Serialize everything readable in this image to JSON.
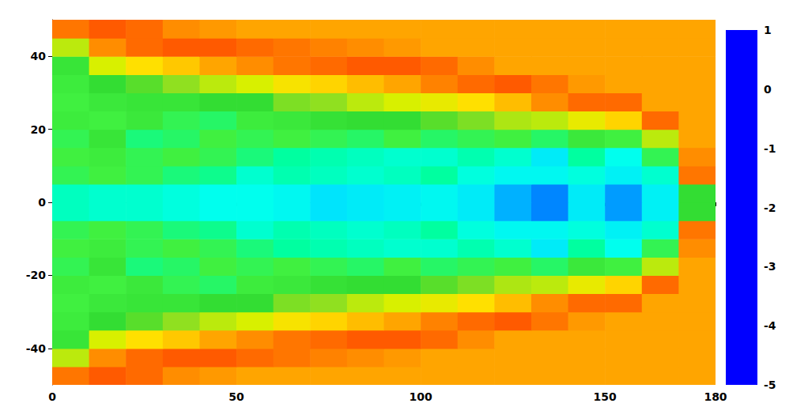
{
  "chart_data": {
    "type": "heatmap",
    "x_edges": [
      0,
      10,
      20,
      30,
      40,
      50,
      60,
      70,
      80,
      90,
      100,
      110,
      120,
      130,
      140,
      150,
      160,
      170,
      180
    ],
    "y_edges": [
      -50,
      -45,
      -40,
      -35,
      -30,
      -25,
      -20,
      -15,
      -10,
      -5,
      0,
      5,
      10,
      15,
      20,
      25,
      30,
      35,
      40,
      45,
      50
    ],
    "values": [
      [
        0.4,
        0.6,
        0.5,
        0.2,
        0.1,
        0,
        0,
        0,
        0,
        0,
        0,
        0,
        0,
        0,
        0,
        0,
        0,
        0
      ],
      [
        -1.2,
        0.2,
        0.5,
        0.6,
        0.6,
        0.5,
        0.4,
        0.3,
        0.2,
        0.1,
        0,
        0,
        0,
        0,
        0,
        0,
        0,
        0
      ],
      [
        -2.2,
        -1.0,
        -0.5,
        -0.3,
        0.0,
        0.2,
        0.4,
        0.5,
        0.6,
        0.6,
        0.5,
        0.2,
        0,
        0,
        0,
        0,
        0,
        0
      ],
      [
        -2.4,
        -2.0,
        -1.8,
        -1.5,
        -1.2,
        -1.0,
        -0.6,
        -0.4,
        -0.2,
        0.0,
        0.3,
        0.5,
        0.6,
        0.4,
        0.1,
        0,
        0,
        0
      ],
      [
        -2.5,
        -2.3,
        -2.2,
        -2.2,
        -2.0,
        -2.0,
        -1.6,
        -1.5,
        -1.2,
        -1.0,
        -0.8,
        -0.5,
        -0.2,
        0.2,
        0.5,
        0.5,
        0,
        0
      ],
      [
        -2.4,
        -2.5,
        -2.3,
        -2.6,
        -2.7,
        -2.4,
        -2.3,
        -2.1,
        -2.0,
        -2.0,
        -1.8,
        -1.6,
        -1.3,
        -1.2,
        -0.8,
        -0.4,
        0.5,
        0
      ],
      [
        -2.6,
        -2.2,
        -2.8,
        -2.7,
        -2.5,
        -2.6,
        -2.5,
        -2.6,
        -2.7,
        -2.5,
        -2.7,
        -2.6,
        -2.5,
        -2.7,
        -2.3,
        -2.5,
        -1.2,
        0
      ],
      [
        -2.5,
        -2.4,
        -2.6,
        -2.5,
        -2.6,
        -2.8,
        -3.0,
        -3.1,
        -3.2,
        -3.3,
        -3.3,
        -3.1,
        -3.3,
        -3.8,
        -3.0,
        -3.5,
        -2.6,
        0.2
      ],
      [
        -2.6,
        -2.5,
        -2.6,
        -2.8,
        -2.9,
        -3.3,
        -3.1,
        -3.2,
        -3.3,
        -3.2,
        -3.0,
        -3.4,
        -3.6,
        -3.6,
        -3.4,
        -3.7,
        -3.3,
        0.4
      ],
      [
        -3.2,
        -3.3,
        -3.3,
        -3.4,
        -3.5,
        -3.5,
        -3.6,
        -3.9,
        -3.8,
        -3.7,
        -3.6,
        -3.8,
        -4.2,
        -4.4,
        -3.8,
        -4.3,
        -3.7,
        -2.0
      ],
      [
        -3.2,
        -3.3,
        -3.3,
        -3.4,
        -3.5,
        -3.5,
        -3.6,
        -3.9,
        -3.8,
        -3.7,
        -3.6,
        -3.8,
        -4.2,
        -4.4,
        -3.8,
        -4.3,
        -3.7,
        -2.0
      ],
      [
        -2.6,
        -2.5,
        -2.6,
        -2.8,
        -2.9,
        -3.3,
        -3.1,
        -3.2,
        -3.3,
        -3.2,
        -3.0,
        -3.4,
        -3.6,
        -3.6,
        -3.4,
        -3.7,
        -3.3,
        0.4
      ],
      [
        -2.5,
        -2.4,
        -2.6,
        -2.5,
        -2.6,
        -2.8,
        -3.0,
        -3.1,
        -3.2,
        -3.3,
        -3.3,
        -3.1,
        -3.3,
        -3.8,
        -3.0,
        -3.5,
        -2.6,
        0.2
      ],
      [
        -2.6,
        -2.2,
        -2.8,
        -2.7,
        -2.5,
        -2.6,
        -2.5,
        -2.6,
        -2.7,
        -2.5,
        -2.7,
        -2.6,
        -2.5,
        -2.7,
        -2.3,
        -2.5,
        -1.2,
        0
      ],
      [
        -2.4,
        -2.5,
        -2.3,
        -2.6,
        -2.7,
        -2.4,
        -2.3,
        -2.1,
        -2.0,
        -2.0,
        -1.8,
        -1.6,
        -1.3,
        -1.2,
        -0.8,
        -0.4,
        0.5,
        0
      ],
      [
        -2.5,
        -2.3,
        -2.2,
        -2.2,
        -2.0,
        -2.0,
        -1.6,
        -1.5,
        -1.2,
        -1.0,
        -0.8,
        -0.5,
        -0.2,
        0.2,
        0.5,
        0.5,
        0,
        0
      ],
      [
        -2.4,
        -2.0,
        -1.8,
        -1.5,
        -1.2,
        -1.0,
        -0.6,
        -0.4,
        -0.2,
        0.0,
        0.3,
        0.5,
        0.6,
        0.4,
        0.1,
        0,
        0,
        0
      ],
      [
        -2.2,
        -1.0,
        -0.5,
        -0.3,
        0.0,
        0.2,
        0.4,
        0.5,
        0.6,
        0.6,
        0.5,
        0.2,
        0,
        0,
        0,
        0,
        0,
        0
      ],
      [
        -1.2,
        0.2,
        0.5,
        0.6,
        0.6,
        0.5,
        0.4,
        0.3,
        0.2,
        0.1,
        0,
        0,
        0,
        0,
        0,
        0,
        0,
        0
      ],
      [
        0.4,
        0.6,
        0.5,
        0.2,
        0.1,
        0,
        0,
        0,
        0,
        0,
        0,
        0,
        0,
        0,
        0,
        0,
        0,
        0
      ]
    ],
    "xlim": [
      0,
      180
    ],
    "ylim": [
      -50,
      50
    ],
    "xticks": [
      0,
      50,
      100,
      150
    ],
    "yticks": [
      -40,
      -20,
      0,
      20,
      40
    ],
    "colorbar": {
      "range": [
        -5,
        1
      ],
      "ticks": [
        -5,
        -4,
        -3,
        -2,
        -1,
        0,
        1
      ]
    }
  }
}
